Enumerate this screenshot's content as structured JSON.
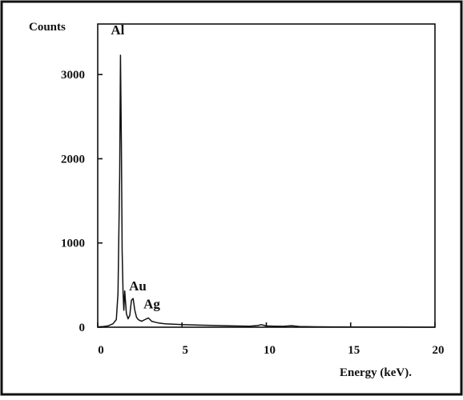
{
  "chart_data": {
    "type": "line",
    "title": "",
    "xlabel": "Energy (keV).",
    "ylabel": "Counts",
    "xlim": [
      0,
      20
    ],
    "ylim": [
      0,
      3600
    ],
    "xticks": [
      0,
      5,
      10,
      15,
      20
    ],
    "yticks": [
      0,
      1000,
      2000,
      3000
    ],
    "xtick_labels": [
      "0",
      "5",
      "10",
      "15",
      "20"
    ],
    "ytick_labels": [
      "0",
      "1000",
      "2000",
      "3000"
    ],
    "grid": false,
    "line_color": "#111111",
    "series": [
      {
        "x": [
          0.0,
          0.3,
          0.6,
          0.9,
          1.1,
          1.2,
          1.3,
          1.35,
          1.4,
          1.45,
          1.5,
          1.55,
          1.6,
          1.7,
          1.8,
          1.9,
          2.0,
          2.1,
          2.2,
          2.3,
          2.4,
          2.5,
          2.6,
          2.8,
          3.0,
          3.1,
          3.2,
          3.4,
          3.6,
          3.8,
          4.0,
          4.5,
          5.0,
          6.0,
          7.0,
          8.0,
          9.0,
          9.5,
          9.7,
          10.0,
          10.5,
          11.0,
          11.5,
          12.0,
          13.0,
          14.0,
          16.0,
          18.0,
          20.0
        ],
        "y": [
          5,
          8,
          15,
          40,
          90,
          400,
          1800,
          3230,
          2200,
          900,
          420,
          200,
          430,
          160,
          100,
          140,
          320,
          340,
          200,
          120,
          90,
          80,
          70,
          90,
          110,
          90,
          70,
          60,
          50,
          45,
          40,
          35,
          30,
          25,
          20,
          15,
          12,
          20,
          30,
          15,
          12,
          10,
          18,
          8,
          5,
          4,
          3,
          2,
          0
        ]
      }
    ],
    "annotations": [
      {
        "text": "Al",
        "x": 1.35,
        "y": 3230
      },
      {
        "text": "Au",
        "x": 2.05,
        "y": 340
      },
      {
        "text": "Ag",
        "x": 3.0,
        "y": 110
      }
    ]
  }
}
